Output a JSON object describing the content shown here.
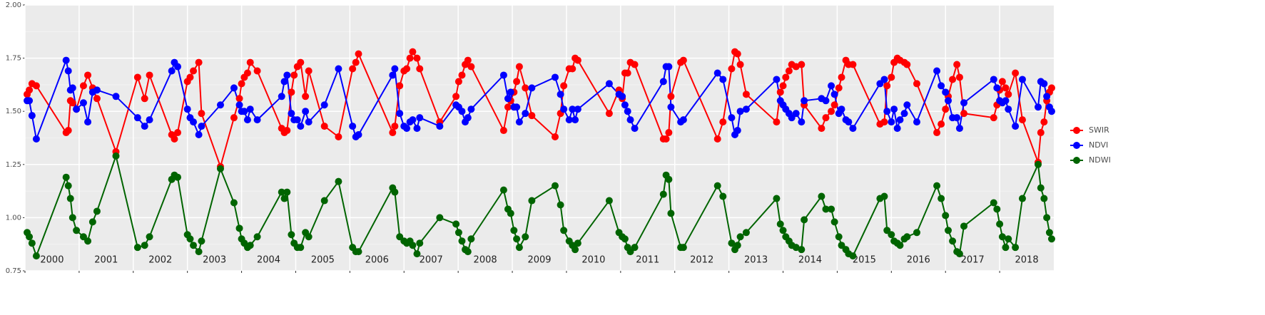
{
  "chart_data": {
    "type": "line",
    "x": [
      2000.04,
      2000.08,
      2000.13,
      2000.21,
      2000.76,
      2000.8,
      2000.84,
      2000.88,
      2000.95,
      2001.08,
      2001.16,
      2001.25,
      2001.33,
      2001.68,
      2002.08,
      2002.21,
      2002.3,
      2002.71,
      2002.76,
      2002.82,
      2003.0,
      2003.05,
      2003.11,
      2003.21,
      2003.26,
      2003.61,
      2003.86,
      2003.96,
      2004.0,
      2004.05,
      2004.11,
      2004.16,
      2004.29,
      2004.74,
      2004.79,
      2004.84,
      2004.92,
      2004.97,
      2005.03,
      2005.09,
      2005.18,
      2005.24,
      2005.53,
      2005.79,
      2006.05,
      2006.11,
      2006.16,
      2006.79,
      2006.83,
      2006.92,
      2007.0,
      2007.05,
      2007.11,
      2007.16,
      2007.24,
      2007.29,
      2007.66,
      2007.96,
      2008.01,
      2008.07,
      2008.13,
      2008.18,
      2008.24,
      2008.84,
      2008.92,
      2008.97,
      2009.03,
      2009.08,
      2009.13,
      2009.24,
      2009.36,
      2009.79,
      2009.89,
      2009.95,
      2010.05,
      2010.11,
      2010.16,
      2010.21,
      2010.79,
      2010.97,
      2011.03,
      2011.08,
      2011.13,
      2011.18,
      2011.26,
      2011.79,
      2011.84,
      2011.89,
      2011.93,
      2012.11,
      2012.16,
      2012.79,
      2012.89,
      2013.05,
      2013.11,
      2013.16,
      2013.21,
      2013.32,
      2013.88,
      2013.95,
      2014.0,
      2014.05,
      2014.11,
      2014.16,
      2014.24,
      2014.34,
      2014.39,
      2014.71,
      2014.79,
      2014.89,
      2014.95,
      2015.03,
      2015.08,
      2015.16,
      2015.21,
      2015.29,
      2015.79,
      2015.87,
      2015.92,
      2016.0,
      2016.05,
      2016.11,
      2016.16,
      2016.24,
      2016.29,
      2016.47,
      2016.84,
      2016.92,
      2017.0,
      2017.05,
      2017.13,
      2017.21,
      2017.26,
      2017.34,
      2017.89,
      2017.95,
      2018.0,
      2018.05,
      2018.11,
      2018.16,
      2018.29,
      2018.42,
      2018.71,
      2018.76,
      2018.82,
      2018.87,
      2018.92,
      2018.96
    ],
    "series": [
      {
        "name": "SWIR",
        "color": "#ff0000",
        "values": [
          1.58,
          1.6,
          1.63,
          1.62,
          1.4,
          1.41,
          1.55,
          1.54,
          1.51,
          1.62,
          1.67,
          1.61,
          1.56,
          1.31,
          1.66,
          1.56,
          1.67,
          1.39,
          1.37,
          1.4,
          1.64,
          1.66,
          1.69,
          1.73,
          1.49,
          1.24,
          1.47,
          1.56,
          1.63,
          1.66,
          1.68,
          1.73,
          1.69,
          1.42,
          1.4,
          1.41,
          1.59,
          1.67,
          1.71,
          1.73,
          1.57,
          1.69,
          1.43,
          1.38,
          1.7,
          1.73,
          1.77,
          1.4,
          1.43,
          1.62,
          1.69,
          1.7,
          1.75,
          1.78,
          1.75,
          1.7,
          1.45,
          1.57,
          1.64,
          1.67,
          1.72,
          1.74,
          1.71,
          1.41,
          1.52,
          1.55,
          1.59,
          1.64,
          1.71,
          1.61,
          1.48,
          1.38,
          1.49,
          1.62,
          1.7,
          1.7,
          1.75,
          1.74,
          1.49,
          1.6,
          1.56,
          1.68,
          1.68,
          1.73,
          1.72,
          1.37,
          1.37,
          1.4,
          1.57,
          1.73,
          1.74,
          1.37,
          1.45,
          1.7,
          1.78,
          1.77,
          1.72,
          1.58,
          1.45,
          1.59,
          1.62,
          1.66,
          1.69,
          1.72,
          1.71,
          1.72,
          1.53,
          1.42,
          1.47,
          1.5,
          1.53,
          1.61,
          1.66,
          1.74,
          1.72,
          1.72,
          1.44,
          1.45,
          1.62,
          1.66,
          1.73,
          1.75,
          1.74,
          1.73,
          1.72,
          1.63,
          1.4,
          1.44,
          1.51,
          1.57,
          1.65,
          1.72,
          1.66,
          1.49,
          1.47,
          1.53,
          1.6,
          1.64,
          1.61,
          1.58,
          1.68,
          1.46,
          1.26,
          1.4,
          1.45,
          1.55,
          1.59,
          1.61
        ]
      },
      {
        "name": "NDVI",
        "color": "#0000ff",
        "values": [
          1.55,
          1.55,
          1.48,
          1.37,
          1.74,
          1.69,
          1.6,
          1.61,
          1.51,
          1.54,
          1.45,
          1.59,
          1.6,
          1.57,
          1.47,
          1.43,
          1.46,
          1.69,
          1.73,
          1.71,
          1.51,
          1.47,
          1.45,
          1.39,
          1.43,
          1.53,
          1.61,
          1.53,
          1.5,
          1.5,
          1.46,
          1.51,
          1.46,
          1.57,
          1.64,
          1.67,
          1.49,
          1.46,
          1.46,
          1.43,
          1.5,
          1.45,
          1.53,
          1.7,
          1.43,
          1.38,
          1.39,
          1.67,
          1.7,
          1.49,
          1.43,
          1.42,
          1.45,
          1.46,
          1.42,
          1.47,
          1.43,
          1.53,
          1.52,
          1.5,
          1.45,
          1.47,
          1.51,
          1.67,
          1.56,
          1.59,
          1.52,
          1.52,
          1.45,
          1.49,
          1.61,
          1.66,
          1.58,
          1.51,
          1.46,
          1.51,
          1.46,
          1.51,
          1.63,
          1.58,
          1.57,
          1.53,
          1.5,
          1.46,
          1.42,
          1.64,
          1.71,
          1.71,
          1.52,
          1.45,
          1.46,
          1.68,
          1.65,
          1.47,
          1.39,
          1.41,
          1.5,
          1.51,
          1.65,
          1.55,
          1.53,
          1.51,
          1.49,
          1.47,
          1.49,
          1.45,
          1.55,
          1.56,
          1.55,
          1.62,
          1.58,
          1.49,
          1.51,
          1.46,
          1.45,
          1.42,
          1.63,
          1.65,
          1.5,
          1.45,
          1.51,
          1.42,
          1.46,
          1.49,
          1.53,
          1.45,
          1.69,
          1.62,
          1.59,
          1.55,
          1.47,
          1.47,
          1.42,
          1.54,
          1.65,
          1.61,
          1.55,
          1.54,
          1.55,
          1.51,
          1.43,
          1.65,
          1.52,
          1.64,
          1.63,
          1.57,
          1.52,
          1.5
        ]
      },
      {
        "name": "NDWI",
        "color": "#006400",
        "values": [
          0.93,
          0.91,
          0.88,
          0.82,
          1.19,
          1.15,
          1.09,
          1.0,
          0.94,
          0.91,
          0.89,
          0.98,
          1.03,
          1.29,
          0.86,
          0.87,
          0.91,
          1.18,
          1.2,
          1.19,
          0.92,
          0.9,
          0.87,
          0.84,
          0.89,
          1.23,
          1.07,
          0.95,
          0.9,
          0.88,
          0.86,
          0.87,
          0.91,
          1.12,
          1.09,
          1.12,
          0.92,
          0.88,
          0.86,
          0.86,
          0.93,
          0.91,
          1.08,
          1.17,
          0.86,
          0.84,
          0.84,
          1.14,
          1.12,
          0.91,
          0.89,
          0.88,
          0.89,
          0.87,
          0.83,
          0.88,
          1.0,
          0.97,
          0.93,
          0.89,
          0.85,
          0.84,
          0.9,
          1.13,
          1.04,
          1.02,
          0.94,
          0.9,
          0.86,
          0.91,
          1.08,
          1.15,
          1.06,
          0.94,
          0.89,
          0.87,
          0.85,
          0.88,
          1.08,
          0.93,
          0.91,
          0.9,
          0.86,
          0.84,
          0.86,
          1.11,
          1.2,
          1.18,
          1.02,
          0.86,
          0.86,
          1.15,
          1.1,
          0.88,
          0.85,
          0.87,
          0.91,
          0.93,
          1.09,
          0.97,
          0.94,
          0.91,
          0.89,
          0.87,
          0.86,
          0.85,
          0.99,
          1.1,
          1.04,
          1.04,
          0.98,
          0.91,
          0.87,
          0.85,
          0.83,
          0.82,
          1.09,
          1.1,
          0.94,
          0.92,
          0.89,
          0.88,
          0.87,
          0.9,
          0.91,
          0.93,
          1.15,
          1.09,
          1.01,
          0.94,
          0.89,
          0.84,
          0.83,
          0.96,
          1.07,
          1.04,
          0.97,
          0.91,
          0.86,
          0.9,
          0.86,
          1.09,
          1.25,
          1.14,
          1.09,
          1.0,
          0.93,
          0.9
        ]
      }
    ],
    "xlim": [
      2000,
      2019
    ],
    "xticks": [
      2000,
      2001,
      2002,
      2003,
      2004,
      2005,
      2006,
      2007,
      2008,
      2009,
      2010,
      2011,
      2012,
      2013,
      2014,
      2015,
      2016,
      2017,
      2018
    ],
    "ylim": [
      0.75,
      2.0
    ],
    "yticks": [
      {
        "value": 0.75,
        "label": "0.75"
      },
      {
        "value": 1.0,
        "label": "1.00"
      },
      {
        "value": 1.25,
        "label": "1.25"
      },
      {
        "value": 1.5,
        "label": "1.50"
      },
      {
        "value": 1.75,
        "label": "1.75"
      },
      {
        "value": 2.0,
        "label": "2.00"
      }
    ],
    "annotations": [
      {
        "x": 2000.5,
        "y": 0.8,
        "text": "2000"
      },
      {
        "x": 2001.5,
        "y": 0.8,
        "text": "2001"
      },
      {
        "x": 2002.5,
        "y": 0.8,
        "text": "2002"
      },
      {
        "x": 2003.5,
        "y": 0.8,
        "text": "2003"
      },
      {
        "x": 2004.5,
        "y": 0.8,
        "text": "2004"
      },
      {
        "x": 2005.5,
        "y": 0.8,
        "text": "2005"
      },
      {
        "x": 2006.5,
        "y": 0.8,
        "text": "2006"
      },
      {
        "x": 2007.5,
        "y": 0.8,
        "text": "2007"
      },
      {
        "x": 2008.5,
        "y": 0.8,
        "text": "2008"
      },
      {
        "x": 2009.5,
        "y": 0.8,
        "text": "2009"
      },
      {
        "x": 2010.5,
        "y": 0.8,
        "text": "2010"
      },
      {
        "x": 2011.5,
        "y": 0.8,
        "text": "2011"
      },
      {
        "x": 2012.5,
        "y": 0.8,
        "text": "2012"
      },
      {
        "x": 2013.5,
        "y": 0.8,
        "text": "2013"
      },
      {
        "x": 2014.5,
        "y": 0.8,
        "text": "2014"
      },
      {
        "x": 2015.5,
        "y": 0.8,
        "text": "2015"
      },
      {
        "x": 2016.5,
        "y": 0.8,
        "text": "2016"
      },
      {
        "x": 2017.5,
        "y": 0.8,
        "text": "2017"
      },
      {
        "x": 2018.5,
        "y": 0.8,
        "text": "2018"
      }
    ],
    "grid": true,
    "legend": "right"
  }
}
